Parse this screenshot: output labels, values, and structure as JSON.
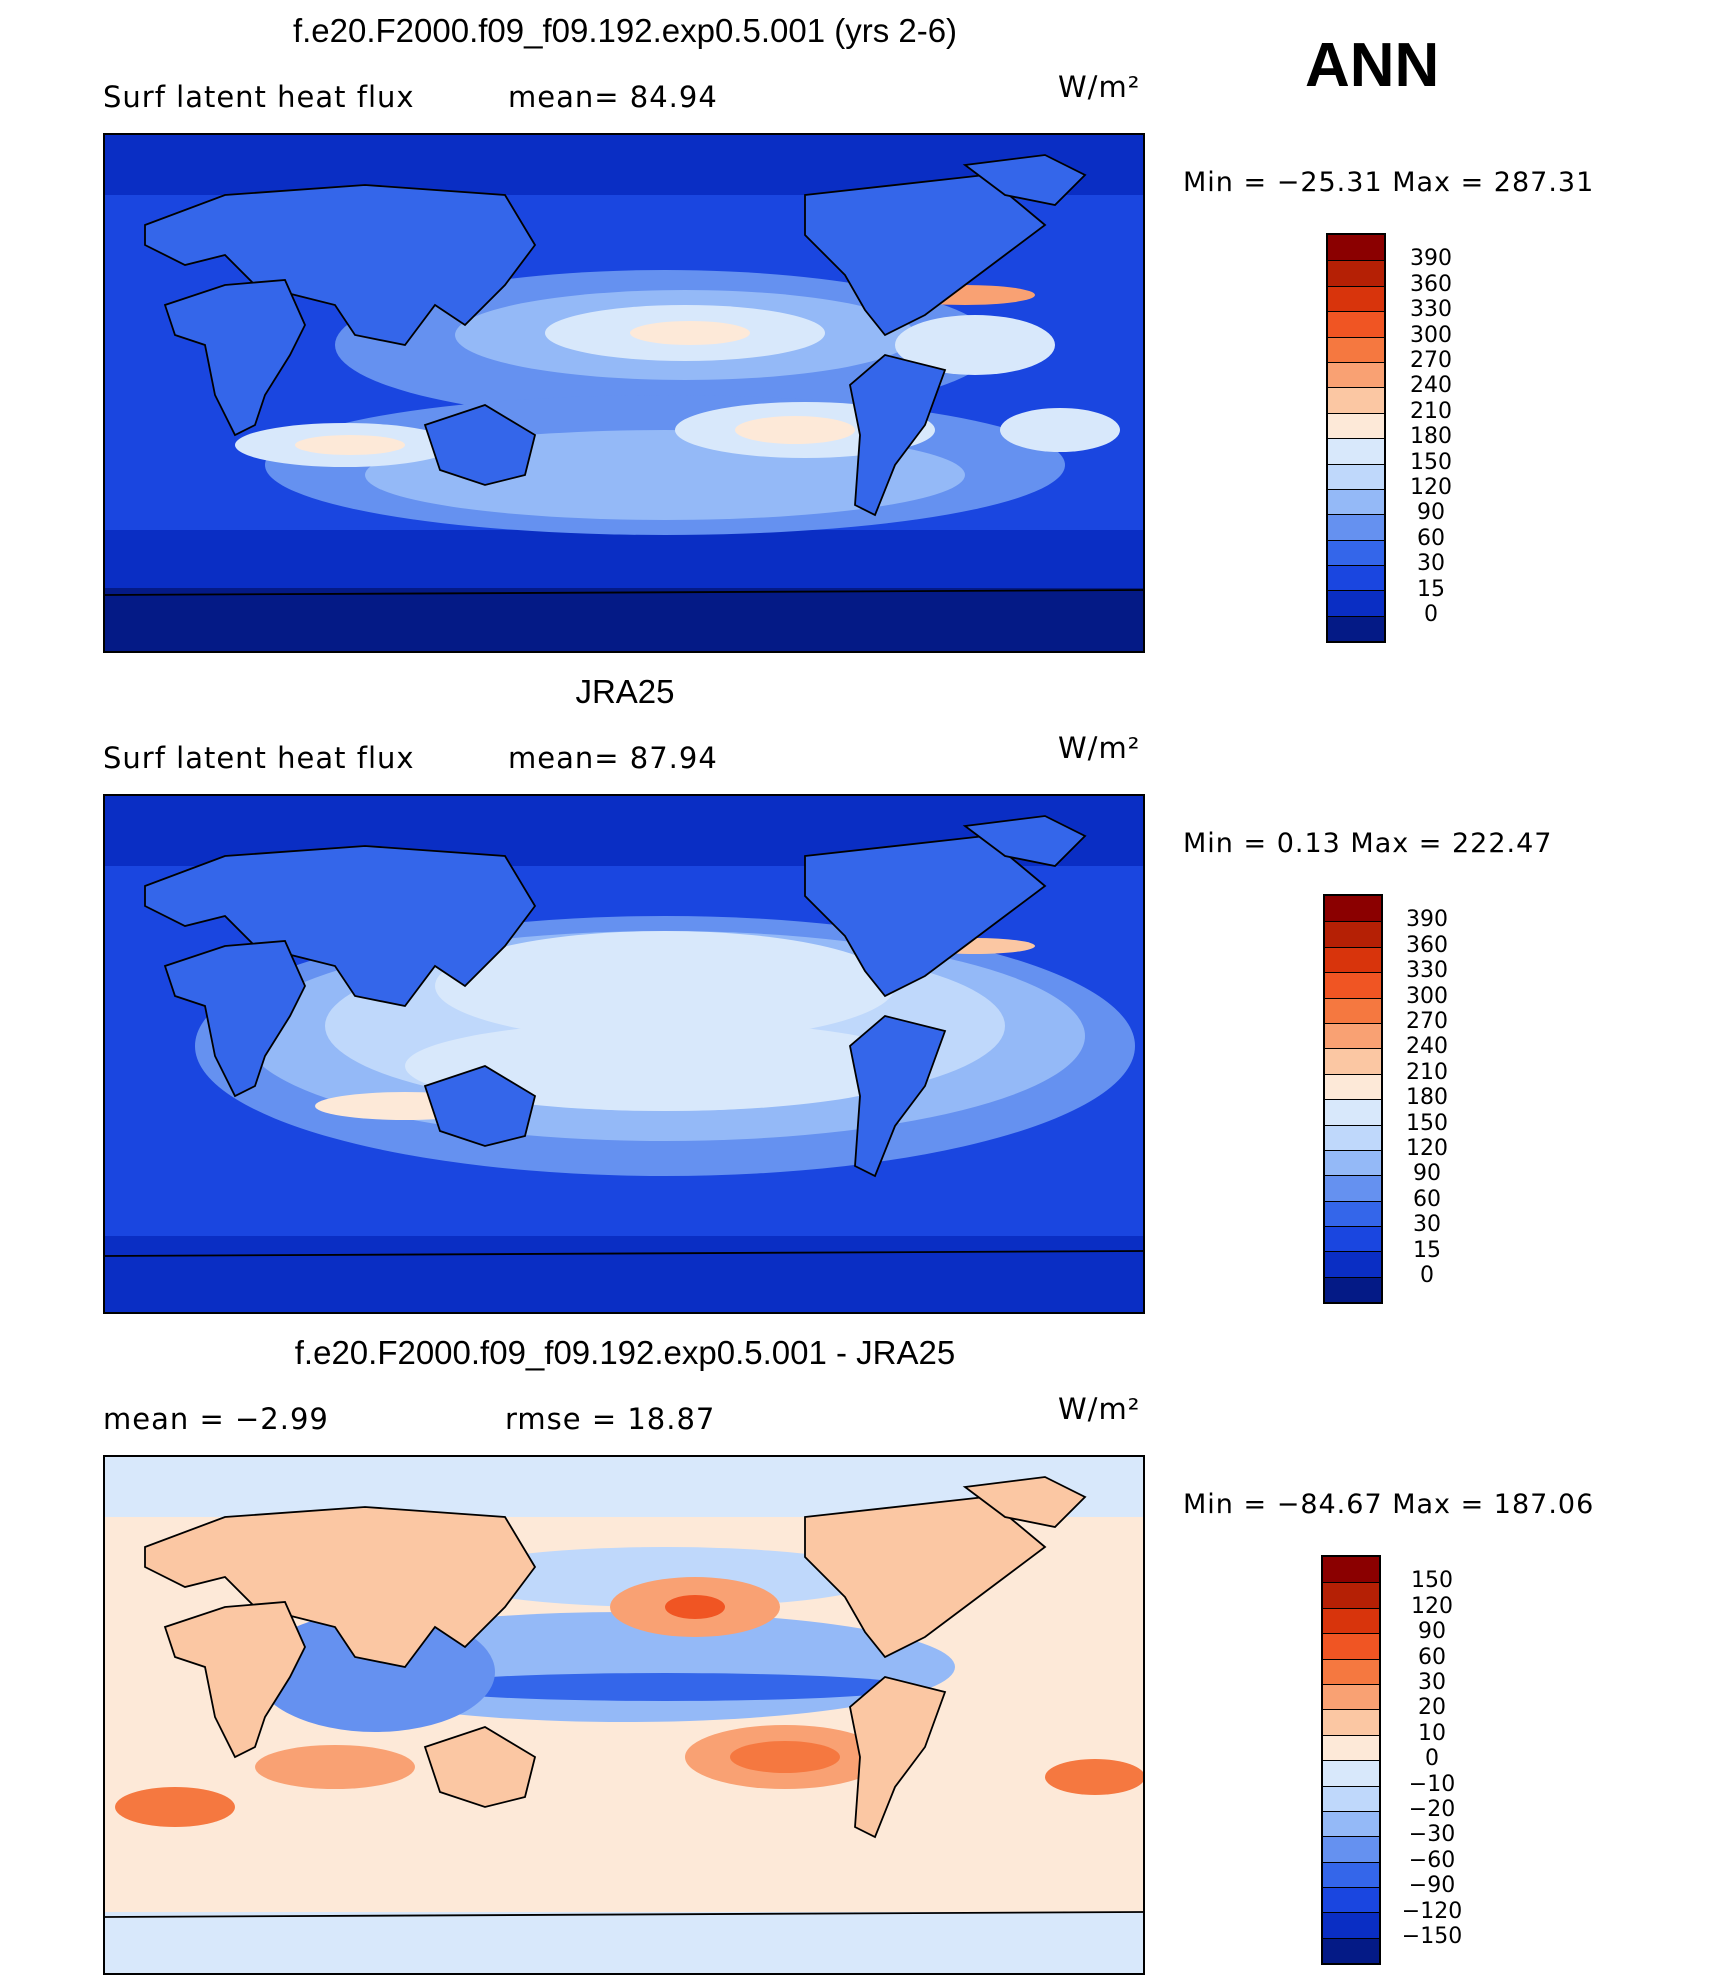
{
  "season": "ANN",
  "panels": [
    {
      "title": "f.e20.F2000.f09_f09.192.exp0.5.001 (yrs 2-6)",
      "left_text": "Surf  latent  heat  flux",
      "mid_text": "mean=   84.94",
      "units": "W/m²",
      "minmax": "Min  =  −25.31  Max  =  287.31",
      "kind": "abs"
    },
    {
      "title": "JRA25",
      "left_text": "Surf  latent  heat  flux",
      "mid_text": "mean=   87.94",
      "units": "W/m²",
      "minmax": "Min  =     0.13  Max  =  222.47",
      "kind": "abs2"
    },
    {
      "title": "f.e20.F2000.f09_f09.192.exp0.5.001 - JRA25",
      "left_text": "mean  =    −2.99",
      "mid_text": "rmse  =    18.87",
      "units": "W/m²",
      "minmax": "Min  =  −84.67  Max  =  187.06",
      "kind": "diff"
    }
  ],
  "colorbars": {
    "abs": {
      "labels": [
        "390",
        "360",
        "330",
        "300",
        "270",
        "240",
        "210",
        "180",
        "150",
        "120",
        "90",
        "60",
        "30",
        "15",
        "0"
      ],
      "colors": [
        "#8b0000",
        "#b52005",
        "#d8340c",
        "#f05523",
        "#f57840",
        "#f9a173",
        "#fbc7a3",
        "#fde9d8",
        "#d8e8fb",
        "#bfd8fb",
        "#94b9f7",
        "#6591f0",
        "#3466ea",
        "#1a46e0",
        "#0a2ec4",
        "#041a86"
      ]
    },
    "diff": {
      "labels": [
        "150",
        "120",
        "90",
        "60",
        "30",
        "20",
        "10",
        "0",
        "−10",
        "−20",
        "−30",
        "−60",
        "−90",
        "−120",
        "−150"
      ],
      "colors": [
        "#8b0000",
        "#b52005",
        "#d8340c",
        "#f05523",
        "#f57840",
        "#f9a173",
        "#fbc7a3",
        "#fde9d8",
        "#d8e8fb",
        "#bfd8fb",
        "#94b9f7",
        "#6591f0",
        "#3466ea",
        "#1a46e0",
        "#0a2ec4",
        "#041a86"
      ]
    }
  }
}
